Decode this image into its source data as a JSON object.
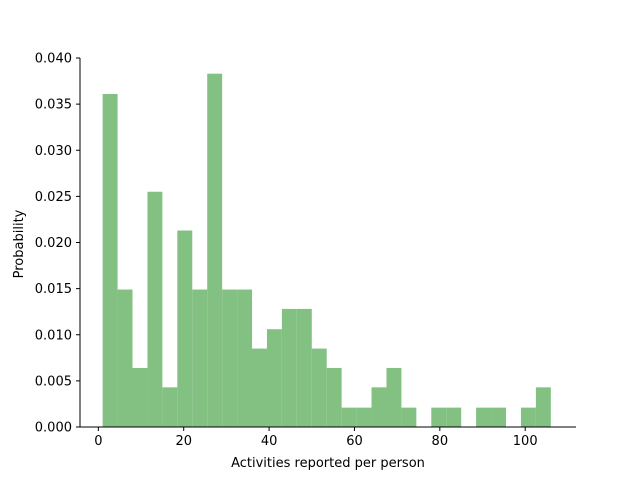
{
  "chart_data": {
    "type": "bar",
    "title": "",
    "xlabel": "Activities reported per person",
    "ylabel": "Probability",
    "xlim": [
      -4.3,
      111.9
    ],
    "ylim": [
      0,
      0.04
    ],
    "x_ticks": [
      0,
      20,
      40,
      60,
      80,
      100
    ],
    "y_ticks": [
      0.0,
      0.005,
      0.01,
      0.015,
      0.02,
      0.025,
      0.03,
      0.035,
      0.04
    ],
    "bar_color": "#82c182",
    "grid": false,
    "bin_width": 3.5,
    "bin_start": 1,
    "values": [
      0.0361,
      0.0149,
      0.0064,
      0.0255,
      0.0043,
      0.0213,
      0.0149,
      0.0383,
      0.0149,
      0.0149,
      0.0085,
      0.0106,
      0.0128,
      0.0128,
      0.0085,
      0.0064,
      0.0021,
      0.0021,
      0.0043,
      0.0064,
      0.0021,
      0.0,
      0.0021,
      0.0021,
      0.0,
      0.0021,
      0.0021,
      0.0,
      0.0021,
      0.0043
    ]
  }
}
